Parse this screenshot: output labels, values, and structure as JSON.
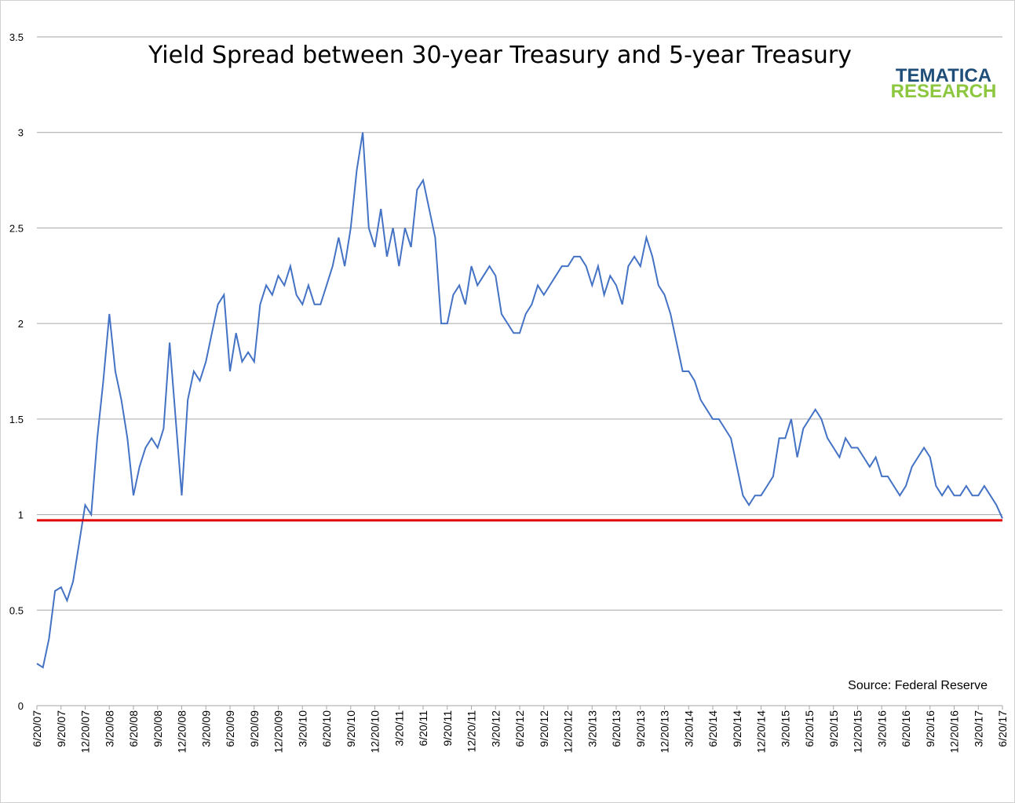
{
  "chart_data": {
    "type": "line",
    "title": "Yield Spread between 30-year Treasury and 5-year Treasury",
    "annotation": "Source: Federal Reserve",
    "logo": [
      "TEMATICA",
      "RESEARCH"
    ],
    "logo_colors": [
      "#1f4e79",
      "#8dc63f"
    ],
    "categories": [
      "6/20/07",
      null,
      null,
      null,
      "9/20/07",
      null,
      null,
      null,
      "12/20/07",
      null,
      null,
      null,
      "3/20/08",
      null,
      null,
      null,
      "6/20/08",
      null,
      null,
      null,
      "9/20/08",
      null,
      null,
      null,
      "12/20/08",
      null,
      null,
      null,
      "3/20/09",
      null,
      null,
      null,
      "6/20/09",
      null,
      null,
      null,
      "9/20/09",
      null,
      null,
      null,
      "12/20/09",
      null,
      null,
      null,
      "3/20/10",
      null,
      null,
      null,
      "6/20/10",
      null,
      null,
      null,
      "9/20/10",
      null,
      null,
      null,
      "12/20/10",
      null,
      null,
      null,
      "3/20/11",
      null,
      null,
      null,
      "6/20/11",
      null,
      null,
      null,
      "9/20/11",
      null,
      null,
      null,
      "12/20/11",
      null,
      null,
      null,
      "3/20/12",
      null,
      null,
      null,
      "6/20/12",
      null,
      null,
      null,
      "9/20/12",
      null,
      null,
      null,
      "12/20/12",
      null,
      null,
      null,
      "3/20/13",
      null,
      null,
      null,
      "6/20/13",
      null,
      null,
      null,
      "9/20/13",
      null,
      null,
      null,
      "12/20/13",
      null,
      null,
      null,
      "3/20/14",
      null,
      null,
      null,
      "6/20/14",
      null,
      null,
      null,
      "9/20/14",
      null,
      null,
      null,
      "12/20/14",
      null,
      null,
      null,
      "3/20/15",
      null,
      null,
      null,
      "6/20/15",
      null,
      null,
      null,
      "9/20/15",
      null,
      null,
      null,
      "12/20/15",
      null,
      null,
      null,
      "3/20/16",
      null,
      null,
      null,
      "6/20/16",
      null,
      null,
      null,
      "9/20/16",
      null,
      null,
      null,
      "12/20/16",
      null,
      null,
      null,
      "3/20/17",
      null,
      null,
      null,
      "6/20/17"
    ],
    "series": [
      {
        "name": "Yield Spread",
        "color": "#4472c4",
        "values": [
          0.22,
          0.2,
          0.35,
          0.6,
          0.62,
          0.55,
          0.65,
          0.85,
          1.05,
          1.0,
          1.4,
          1.7,
          2.05,
          1.75,
          1.6,
          1.4,
          1.1,
          1.25,
          1.35,
          1.4,
          1.35,
          1.45,
          1.9,
          1.5,
          1.1,
          1.6,
          1.75,
          1.7,
          1.8,
          1.95,
          2.1,
          2.15,
          1.75,
          1.95,
          1.8,
          1.85,
          1.8,
          2.1,
          2.2,
          2.15,
          2.25,
          2.2,
          2.3,
          2.15,
          2.1,
          2.2,
          2.1,
          2.1,
          2.2,
          2.3,
          2.45,
          2.3,
          2.5,
          2.8,
          3.0,
          2.5,
          2.4,
          2.6,
          2.35,
          2.5,
          2.3,
          2.5,
          2.4,
          2.7,
          2.75,
          2.6,
          2.45,
          2.0,
          2.0,
          2.15,
          2.2,
          2.1,
          2.3,
          2.2,
          2.25,
          2.3,
          2.25,
          2.05,
          2.0,
          1.95,
          1.95,
          2.05,
          2.1,
          2.2,
          2.15,
          2.2,
          2.25,
          2.3,
          2.3,
          2.35,
          2.35,
          2.3,
          2.2,
          2.3,
          2.15,
          2.25,
          2.2,
          2.1,
          2.3,
          2.35,
          2.3,
          2.45,
          2.35,
          2.2,
          2.15,
          2.05,
          1.9,
          1.75,
          1.75,
          1.7,
          1.6,
          1.55,
          1.5,
          1.5,
          1.45,
          1.4,
          1.25,
          1.1,
          1.05,
          1.1,
          1.1,
          1.15,
          1.2,
          1.4,
          1.4,
          1.5,
          1.3,
          1.45,
          1.5,
          1.55,
          1.5,
          1.4,
          1.35,
          1.3,
          1.4,
          1.35,
          1.35,
          1.3,
          1.25,
          1.3,
          1.2,
          1.2,
          1.15,
          1.1,
          1.15,
          1.25,
          1.3,
          1.35,
          1.3,
          1.15,
          1.1,
          1.15,
          1.1,
          1.1,
          1.15,
          1.1,
          1.1,
          1.15,
          1.1,
          1.05,
          0.98
        ]
      }
    ],
    "hline": 0.97,
    "hline_color": "#e00000",
    "ylim": [
      0,
      3.5
    ],
    "yticks": [
      0,
      0.5,
      1,
      1.5,
      2,
      2.5,
      3,
      3.5
    ],
    "grid": true
  }
}
